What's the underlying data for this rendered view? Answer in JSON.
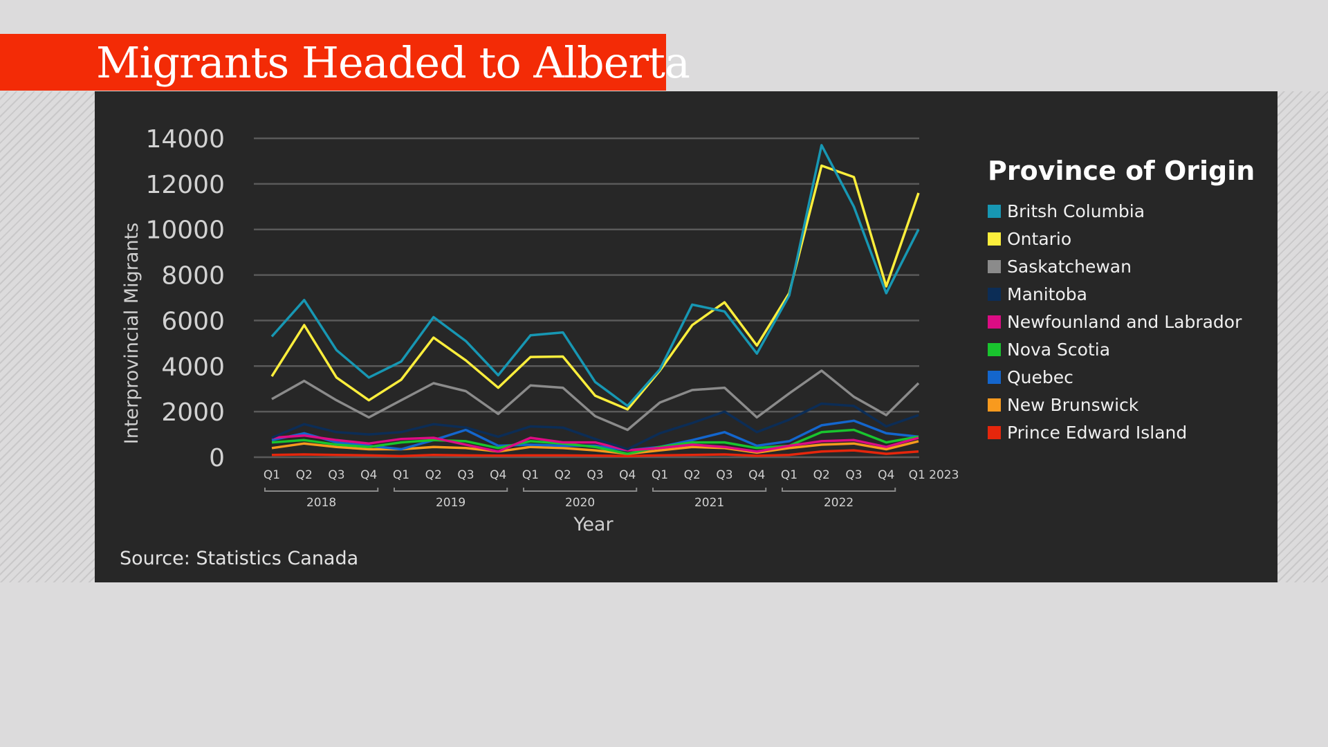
{
  "title": "Migrants Headed to Alberta",
  "source": "Source: Statistics Canada",
  "colors": {
    "title_bar": "#f32b06",
    "panel": "#272727",
    "grid": "#5a5a5a"
  },
  "chart_data": {
    "type": "line",
    "title": "",
    "xlabel": "Year",
    "ylabel": "Interprovincial Migrants",
    "ylim": [
      0,
      14000
    ],
    "yticks": [
      "0",
      "2000",
      "4000",
      "6000",
      "8000",
      "10000",
      "12000",
      "14000"
    ],
    "grid": true,
    "legend_title": "Province of Origin",
    "legend_position": "right",
    "x": [
      "Q1",
      "Q2",
      "Q3",
      "Q4",
      "Q1",
      "Q2",
      "Q3",
      "Q4",
      "Q1",
      "Q2",
      "Q3",
      "Q4",
      "Q1",
      "Q2",
      "Q3",
      "Q4",
      "Q1",
      "Q2",
      "Q3",
      "Q4",
      "Q1 2023"
    ],
    "year_groups": [
      {
        "label": "2018",
        "start": 0,
        "end": 3
      },
      {
        "label": "2019",
        "start": 4,
        "end": 7
      },
      {
        "label": "2020",
        "start": 8,
        "end": 11
      },
      {
        "label": "2021",
        "start": 12,
        "end": 15
      },
      {
        "label": "2022",
        "start": 16,
        "end": 19
      }
    ],
    "series": [
      {
        "name": "Britsh Columbia",
        "color": "#1797b3",
        "values": [
          5300,
          6900,
          4700,
          3500,
          4200,
          6150,
          5100,
          3600,
          5350,
          5480,
          3300,
          2250,
          3850,
          6700,
          6400,
          4550,
          7100,
          13700,
          11000,
          7200,
          10000
        ]
      },
      {
        "name": "Ontario",
        "color": "#fcee3c",
        "values": [
          3550,
          5800,
          3500,
          2500,
          3400,
          5250,
          4250,
          3050,
          4400,
          4420,
          2700,
          2100,
          3800,
          5800,
          6800,
          4900,
          7200,
          12800,
          12300,
          7500,
          11600
        ]
      },
      {
        "name": "Saskatchewan",
        "color": "#8b8b8b",
        "values": [
          2550,
          3350,
          2500,
          1750,
          2500,
          3250,
          2900,
          1900,
          3150,
          3050,
          1800,
          1200,
          2400,
          2950,
          3050,
          1750,
          2800,
          3800,
          2650,
          1850,
          3250
        ]
      },
      {
        "name": "Manitoba",
        "color": "#0c2d56",
        "values": [
          850,
          1450,
          1100,
          1000,
          1100,
          1450,
          1300,
          900,
          1350,
          1300,
          800,
          350,
          1050,
          1500,
          2000,
          1100,
          1650,
          2350,
          2250,
          1350,
          1850
        ]
      },
      {
        "name": "Newfounland and Labrador",
        "color": "#dc0c84",
        "values": [
          850,
          950,
          750,
          600,
          800,
          850,
          550,
          250,
          850,
          650,
          650,
          300,
          400,
          550,
          450,
          250,
          500,
          700,
          750,
          450,
          850
        ]
      },
      {
        "name": "Nova Scotia",
        "color": "#19c42e",
        "values": [
          650,
          750,
          550,
          450,
          650,
          750,
          700,
          400,
          700,
          600,
          450,
          150,
          450,
          650,
          650,
          400,
          500,
          1100,
          1200,
          650,
          900
        ]
      },
      {
        "name": "Quebec",
        "color": "#1466cd",
        "values": [
          750,
          1050,
          650,
          500,
          350,
          750,
          1200,
          500,
          550,
          500,
          500,
          300,
          450,
          750,
          1100,
          500,
          700,
          1400,
          1600,
          1050,
          900
        ]
      },
      {
        "name": "New Brunswick",
        "color": "#f89a1e",
        "values": [
          400,
          600,
          450,
          350,
          350,
          450,
          400,
          250,
          450,
          400,
          300,
          150,
          300,
          450,
          400,
          200,
          400,
          550,
          600,
          350,
          700
        ]
      },
      {
        "name": "Prince Edward Island",
        "color": "#e5260c",
        "values": [
          100,
          120,
          100,
          80,
          50,
          100,
          80,
          70,
          80,
          80,
          70,
          50,
          80,
          100,
          120,
          60,
          100,
          250,
          300,
          150,
          250
        ]
      }
    ]
  }
}
